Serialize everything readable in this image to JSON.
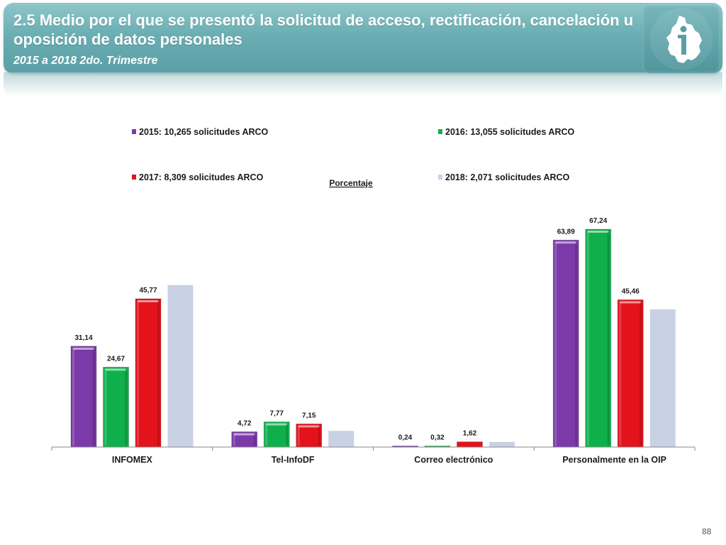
{
  "slide": {
    "title": "2.5 Medio por el que se presentó  la solicitud de acceso, rectificación, cancelación u oposición de datos personales",
    "subtitle": "2015 a 2018 2do. Trimestre",
    "page_number": "88",
    "logo_icon": "mexico-city-info-icon"
  },
  "colors": {
    "header": "#6aaeb3",
    "s2015": "#7b3aa8",
    "s2016": "#0fb04c",
    "s2017": "#e3121b",
    "s2018": "#c9d1e4"
  },
  "chart_data": {
    "type": "bar",
    "title": "Porcentaje",
    "categories": [
      "INFOMEX",
      "Tel-InfoDF",
      "Correo electrónico",
      "Personalmente en la OIP"
    ],
    "series": [
      {
        "name": "2015: 10,265 solicitudes ARCO",
        "values": [
          31.14,
          4.72,
          0.24,
          63.89
        ],
        "labels": [
          "31,14",
          "4,72",
          "0,24",
          "63,89"
        ]
      },
      {
        "name": "2016: 13,055 solicitudes ARCO",
        "values": [
          24.67,
          7.77,
          0.32,
          67.24
        ],
        "labels": [
          "24,67",
          "7,77",
          "0,32",
          "67,24"
        ]
      },
      {
        "name": "2017: 8,309 solicitudes ARCO",
        "values": [
          45.77,
          7.15,
          1.62,
          45.46
        ],
        "labels": [
          "45,77",
          "7,15",
          "1,62",
          "45,46"
        ]
      },
      {
        "name": "2018: 2,071 solicitudes ARCO",
        "values": [
          50,
          5,
          1.6,
          42.5
        ],
        "labels": [
          "",
          "",
          "",
          ""
        ]
      }
    ],
    "ylim": [
      0,
      70
    ],
    "legend_position": "top",
    "grid": false
  }
}
